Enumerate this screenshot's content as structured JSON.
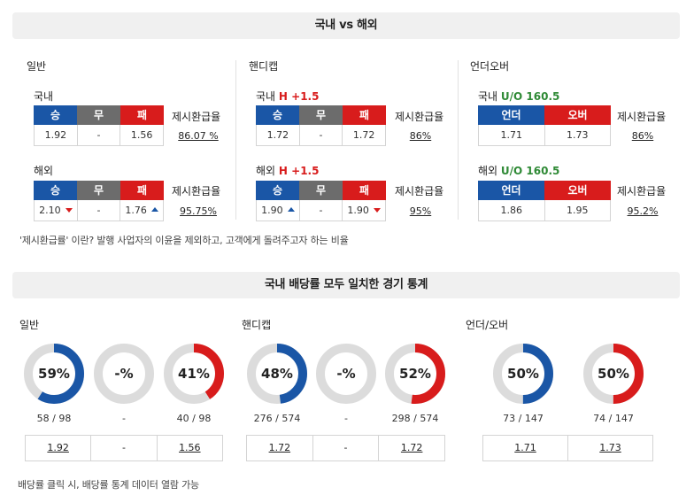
{
  "section1": {
    "title": "국내 vs 해외",
    "general": {
      "title": "일반",
      "domestic": {
        "label": "국내",
        "headers": [
          "승",
          "무",
          "패"
        ],
        "values": [
          "1.92",
          "-",
          "1.56"
        ],
        "rate_label": "제시환급율",
        "rate": "86.07 %"
      },
      "overseas": {
        "label": "해외",
        "headers": [
          "승",
          "무",
          "패"
        ],
        "values": [
          "2.10",
          "-",
          "1.76"
        ],
        "rate_label": "제시환급율",
        "rate": "95.75%"
      }
    },
    "handicap": {
      "title": "핸디캡",
      "domestic": {
        "label": "국내",
        "tag": "H +1.5",
        "headers": [
          "승",
          "무",
          "패"
        ],
        "values": [
          "1.72",
          "-",
          "1.72"
        ],
        "rate_label": "제시환급율",
        "rate": "86%"
      },
      "overseas": {
        "label": "해외",
        "tag": "H +1.5",
        "headers": [
          "승",
          "무",
          "패"
        ],
        "values": [
          "1.90",
          "-",
          "1.90"
        ],
        "rate_label": "제시환급율",
        "rate": "95%"
      }
    },
    "underover": {
      "title": "언더오버",
      "domestic": {
        "label": "국내",
        "tag": "U/O 160.5",
        "headers": [
          "언더",
          "오버"
        ],
        "values": [
          "1.71",
          "1.73"
        ],
        "rate_label": "제시환급율",
        "rate": "86%"
      },
      "overseas": {
        "label": "해외",
        "tag": "U/O 160.5",
        "headers": [
          "언더",
          "오버"
        ],
        "values": [
          "1.86",
          "1.95"
        ],
        "rate_label": "제시환급율",
        "rate": "95.2%"
      }
    },
    "footnote": "'제시환급률' 이란? 발행 사업자의 이윤을 제외하고, 고객에게 돌려주고자 하는 비율"
  },
  "section2": {
    "title": "국내 배당률 모두 일치한 경기 통계",
    "general": {
      "title": "일반",
      "donuts": [
        {
          "pct_label": "59%",
          "fraction": 0.59,
          "color": "#1a56a6",
          "count": "58 / 98"
        },
        {
          "pct_label": "-%",
          "fraction": 0,
          "color": "#6c6c6c",
          "count": "-"
        },
        {
          "pct_label": "41%",
          "fraction": 0.41,
          "color": "#d81c1c",
          "count": "40 / 98"
        }
      ],
      "odds": [
        "1.92",
        "-",
        "1.56"
      ]
    },
    "handicap": {
      "title": "핸디캡",
      "donuts": [
        {
          "pct_label": "48%",
          "fraction": 0.48,
          "color": "#1a56a6",
          "count": "276 / 574"
        },
        {
          "pct_label": "-%",
          "fraction": 0,
          "color": "#6c6c6c",
          "count": "-"
        },
        {
          "pct_label": "52%",
          "fraction": 0.52,
          "color": "#d81c1c",
          "count": "298 / 574"
        }
      ],
      "odds": [
        "1.72",
        "-",
        "1.72"
      ]
    },
    "underover": {
      "title": "언더/오버",
      "donuts": [
        {
          "pct_label": "50%",
          "fraction": 0.5,
          "color": "#1a56a6",
          "count": "73 / 147"
        },
        {
          "pct_label": "50%",
          "fraction": 0.5,
          "color": "#d81c1c",
          "count": "74 / 147"
        }
      ],
      "odds": [
        "1.71",
        "1.73"
      ]
    },
    "footnote": "배당률 클릭 시, 배당률 통계 데이터 열람 가능"
  },
  "colors": {
    "blue": "#1a56a6",
    "gray": "#6c6c6c",
    "red": "#d81c1c",
    "track": "#dcdcdc"
  }
}
